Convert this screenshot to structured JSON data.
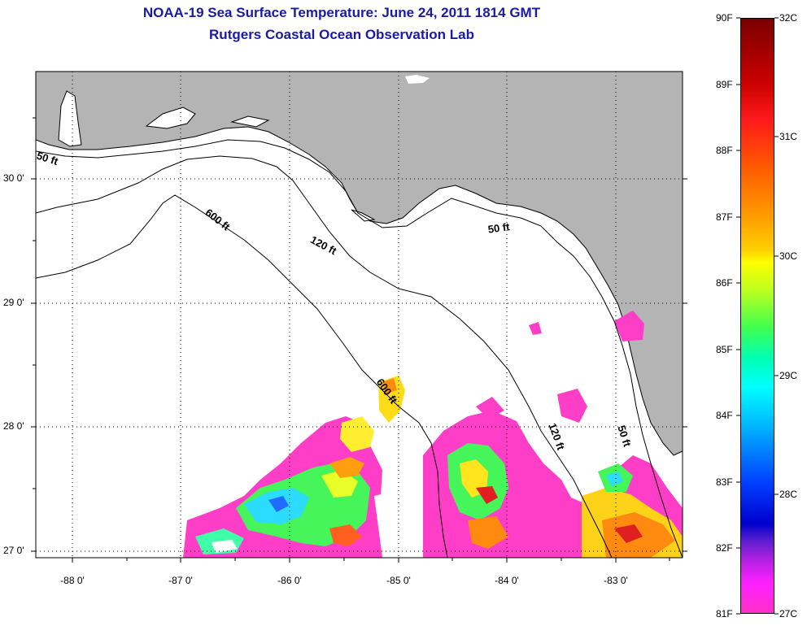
{
  "title": {
    "line1": "NOAA-19 Sea Surface Temperature:  June 24, 2011 1814 GMT",
    "line2": "Rutgers Coastal Ocean Observation Lab"
  },
  "axes": {
    "lat_labels": [
      "30 0'",
      "29 0'",
      "28 0'",
      "27 0'"
    ],
    "lon_labels": [
      "-88 0'",
      "-87 0'",
      "-86 0'",
      "-85 0'",
      "-84 0'",
      "-83 0'"
    ],
    "lat_range": [
      26.98,
      30.85
    ],
    "lon_range": [
      -88.33,
      -82.45
    ]
  },
  "contours": {
    "label_50_west": "50 ft",
    "label_50_east": "50 ft",
    "label_50_south": "50 ft",
    "label_120_north": "120 ft",
    "label_120_south": "120 ft",
    "label_600_north": "600 ft",
    "label_600_south": "600 ft"
  },
  "colorbar": {
    "fahrenheit": [
      "90F",
      "89F",
      "88F",
      "87F",
      "86F",
      "85F",
      "84F",
      "83F",
      "82F",
      "81F"
    ],
    "celsius": [
      "32C",
      "31C",
      "30C",
      "29C",
      "28C",
      "27C"
    ]
  },
  "colors": {
    "land": "#b4b4b4",
    "ocean_no_data": "#ffffff",
    "title": "#1a1aa8"
  }
}
